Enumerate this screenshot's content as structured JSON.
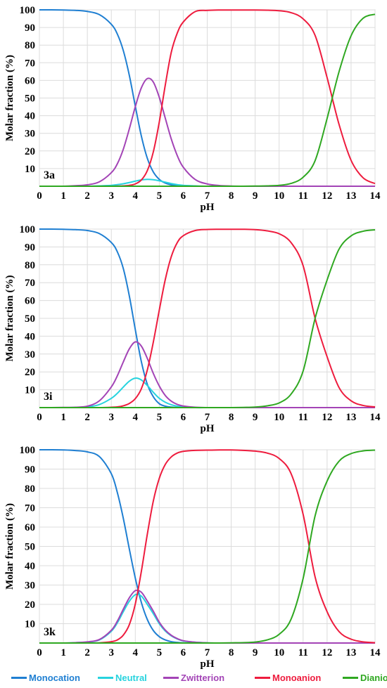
{
  "chart_data": [
    {
      "type": "line",
      "panel_label": "3a",
      "xlabel": "pH",
      "ylabel": "Molar fraction (%)",
      "xlim": [
        0,
        14
      ],
      "ylim": [
        0,
        100
      ],
      "xticks": [
        "0",
        "1",
        "2",
        "3",
        "4",
        "5",
        "6",
        "7",
        "8",
        "9",
        "10",
        "11",
        "12",
        "13",
        "14"
      ],
      "yticks": [
        "10",
        "20",
        "30",
        "40",
        "50",
        "60",
        "70",
        "80",
        "90",
        "100"
      ],
      "grid": true,
      "pKa": [
        4.75,
        4.8,
        12.4
      ],
      "microfractions": {
        "Neutral": 0.06,
        "Zwitterion": 0.94
      },
      "x": [
        0,
        0.5,
        1,
        1.5,
        2,
        2.5,
        3,
        3.25,
        3.5,
        3.75,
        4,
        4.25,
        4.5,
        4.75,
        5,
        5.25,
        5.5,
        5.75,
        6,
        6.5,
        7,
        7.5,
        8,
        8.5,
        9,
        9.5,
        10,
        10.5,
        11,
        11.5,
        12,
        12.5,
        13,
        13.5,
        14
      ],
      "series": [
        {
          "name": "Monocation",
          "color": "#1f7fd2",
          "values": [
            100.0,
            100.0,
            99.9,
            99.7,
            99.1,
            97.3,
            91.8,
            86.3,
            76.9,
            62.9,
            45.4,
            28.6,
            15.9,
            8.1,
            3.9,
            1.8,
            0.8,
            0.4,
            0.2,
            0.0,
            0.0,
            0.0,
            0.0,
            0.0,
            0.0,
            0.0,
            0.0,
            0.0,
            0.0,
            0.0,
            0.0,
            0.0,
            0.0,
            0.0,
            0.0
          ]
        },
        {
          "name": "Neutral",
          "color": "#27d3de",
          "values": [
            0.0,
            0.0,
            0.0,
            0.0,
            0.0,
            0.2,
            0.5,
            0.9,
            1.4,
            2.1,
            2.9,
            3.6,
            3.9,
            3.7,
            3.1,
            2.3,
            1.5,
            0.9,
            0.5,
            0.2,
            0.0,
            0.0,
            0.0,
            0.0,
            0.0,
            0.0,
            0.0,
            0.0,
            0.0,
            0.0,
            0.0,
            0.0,
            0.0,
            0.0,
            0.0
          ]
        },
        {
          "name": "Zwitterion",
          "color": "#a344b6",
          "values": [
            0.0,
            0.0,
            0.0,
            0.3,
            0.8,
            2.5,
            7.7,
            12.7,
            21.0,
            32.5,
            45.1,
            55.7,
            61.0,
            59.1,
            50.4,
            38.6,
            26.8,
            17.4,
            10.8,
            3.8,
            1.3,
            0.4,
            0.1,
            0.0,
            0.0,
            0.0,
            0.0,
            0.0,
            0.0,
            0.0,
            0.0,
            0.0,
            0.0,
            0.0,
            0.0
          ]
        },
        {
          "name": "Monoanion",
          "color": "#ee1c3e",
          "values": [
            0.0,
            0.0,
            0.0,
            0.0,
            0.0,
            0.0,
            0.0,
            0.1,
            0.2,
            0.5,
            1.3,
            3.5,
            8.8,
            19.4,
            36.4,
            57.3,
            75.9,
            86.8,
            93.1,
            99.0,
            99.7,
            99.9,
            99.9,
            99.9,
            99.9,
            99.8,
            99.5,
            98.4,
            94.9,
            85.5,
            61.6,
            35.0,
            14.7,
            4.8,
            1.5
          ]
        },
        {
          "name": "Dianion",
          "color": "#2fa821",
          "values": [
            0.0,
            0.0,
            0.0,
            0.0,
            0.0,
            0.0,
            0.0,
            0.0,
            0.0,
            0.0,
            0.0,
            0.0,
            0.0,
            0.0,
            0.0,
            0.0,
            0.0,
            0.0,
            0.0,
            0.0,
            0.0,
            0.0,
            0.0,
            0.0,
            0.1,
            0.2,
            0.5,
            1.6,
            5.1,
            14.5,
            38.4,
            65.0,
            85.3,
            95.2,
            97.5
          ]
        }
      ]
    },
    {
      "type": "line",
      "panel_label": "3i",
      "xlabel": "pH",
      "ylabel": "Molar fraction (%)",
      "xlim": [
        0,
        14
      ],
      "ylim": [
        0,
        100
      ],
      "xticks": [
        "0",
        "1",
        "2",
        "3",
        "4",
        "5",
        "6",
        "7",
        "8",
        "9",
        "10",
        "11",
        "12",
        "13",
        "14"
      ],
      "yticks": [
        "10",
        "20",
        "30",
        "40",
        "50",
        "60",
        "70",
        "80",
        "90",
        "100"
      ],
      "grid": true,
      "pKa": [
        3.85,
        4.65,
        11.6
      ],
      "microfractions": {
        "Neutral": 0.31,
        "Zwitterion": 0.69
      },
      "x": [
        0,
        0.5,
        1,
        1.5,
        2,
        2.5,
        3,
        3.25,
        3.5,
        3.75,
        4,
        4.25,
        4.5,
        4.75,
        5,
        5.25,
        5.5,
        5.75,
        6,
        6.5,
        7,
        7.5,
        8,
        8.5,
        9,
        9.5,
        10,
        10.5,
        11,
        11.5,
        12,
        12.5,
        13,
        13.5,
        14
      ],
      "series": [
        {
          "name": "Monocation",
          "color": "#1f7fd2",
          "values": [
            100.0,
            100.0,
            99.9,
            99.7,
            99.2,
            97.5,
            92.5,
            87.3,
            77.9,
            62.6,
            43.7,
            25.9,
            13.1,
            6.1,
            2.2,
            0.8,
            0.3,
            0.1,
            0.0,
            0.0,
            0.0,
            0.0,
            0.0,
            0.0,
            0.0,
            0.0,
            0.0,
            0.0,
            0.0,
            0.0,
            0.0,
            0.0,
            0.0,
            0.0,
            0.0
          ]
        },
        {
          "name": "Neutral",
          "color": "#27d3de",
          "values": [
            0.0,
            0.0,
            0.0,
            0.1,
            0.4,
            1.7,
            5.2,
            8.0,
            11.5,
            14.8,
            16.5,
            15.5,
            12.4,
            8.6,
            5.2,
            3.0,
            1.6,
            0.8,
            0.4,
            0.0,
            0.0,
            0.0,
            0.0,
            0.0,
            0.0,
            0.0,
            0.0,
            0.0,
            0.0,
            0.0,
            0.0,
            0.0,
            0.0,
            0.0,
            0.0
          ]
        },
        {
          "name": "Zwitterion",
          "color": "#a344b6",
          "values": [
            0.0,
            0.0,
            0.1,
            0.2,
            0.8,
            3.8,
            11.6,
            17.8,
            25.6,
            32.9,
            36.8,
            34.5,
            27.6,
            19.2,
            12.1,
            6.8,
            3.6,
            1.8,
            0.9,
            0.2,
            0.0,
            0.0,
            0.0,
            0.0,
            0.0,
            0.0,
            0.0,
            0.0,
            0.0,
            0.0,
            0.0,
            0.0,
            0.0,
            0.0,
            0.0
          ]
        },
        {
          "name": "Monoanion",
          "color": "#ee1c3e",
          "values": [
            0.0,
            0.0,
            0.0,
            0.0,
            0.0,
            0.0,
            0.2,
            0.4,
            1.0,
            2.3,
            5.0,
            10.5,
            21.0,
            36.6,
            54.6,
            71.7,
            84.5,
            92.4,
            96.3,
            99.2,
            99.8,
            99.9,
            99.9,
            99.9,
            99.7,
            99.0,
            97.4,
            92.4,
            79.5,
            50.0,
            28.5,
            11.2,
            3.8,
            1.2,
            0.4
          ]
        },
        {
          "name": "Dianion",
          "color": "#2fa821",
          "values": [
            0.0,
            0.0,
            0.0,
            0.0,
            0.0,
            0.0,
            0.0,
            0.0,
            0.0,
            0.0,
            0.0,
            0.0,
            0.0,
            0.0,
            0.0,
            0.0,
            0.0,
            0.0,
            0.0,
            0.0,
            0.0,
            0.0,
            0.0,
            0.1,
            0.3,
            1.0,
            2.6,
            7.6,
            20.5,
            50.0,
            71.5,
            88.8,
            96.2,
            98.8,
            99.6
          ]
        }
      ]
    },
    {
      "type": "line",
      "panel_label": "3k",
      "xlabel": "pH",
      "ylabel": "Molar fraction (%)",
      "xlim": [
        0,
        14
      ],
      "ylim": [
        0,
        100
      ],
      "xticks": [
        "0",
        "1",
        "2",
        "3",
        "4",
        "5",
        "6",
        "7",
        "8",
        "9",
        "10",
        "11",
        "12",
        "13",
        "14"
      ],
      "yticks": [
        "10",
        "20",
        "30",
        "40",
        "50",
        "60",
        "70",
        "80",
        "90",
        "100"
      ],
      "grid": true,
      "pKa": [
        3.7,
        4.3,
        11.3
      ],
      "microfractions": {
        "Neutral": 0.48,
        "Zwitterion": 0.52
      },
      "x": [
        0,
        0.5,
        1,
        1.5,
        2,
        2.5,
        3,
        3.25,
        3.5,
        3.75,
        4,
        4.25,
        4.5,
        4.75,
        5,
        5.25,
        5.5,
        5.75,
        6,
        6.5,
        7,
        7.5,
        8,
        8.5,
        9,
        9.5,
        10,
        10.5,
        11,
        11.5,
        12,
        12.5,
        13,
        13.5,
        14
      ],
      "series": [
        {
          "name": "Monocation",
          "color": "#1f7fd2",
          "values": [
            100.0,
            100.0,
            99.9,
            99.6,
            98.9,
            96.5,
            87.6,
            77.9,
            64.5,
            48.7,
            33.6,
            21.1,
            12.2,
            6.5,
            3.3,
            1.6,
            0.7,
            0.3,
            0.1,
            0.0,
            0.0,
            0.0,
            0.0,
            0.0,
            0.0,
            0.0,
            0.0,
            0.0,
            0.0,
            0.0,
            0.0,
            0.0,
            0.0,
            0.0,
            0.0
          ]
        },
        {
          "name": "Neutral",
          "color": "#27d3de",
          "values": [
            0.0,
            0.0,
            0.0,
            0.2,
            0.5,
            1.6,
            6.1,
            10.4,
            16.2,
            21.6,
            25.0,
            24.3,
            20.0,
            15.2,
            10.0,
            6.2,
            3.7,
            2.1,
            1.1,
            0.4,
            0.1,
            0.0,
            0.0,
            0.0,
            0.0,
            0.0,
            0.0,
            0.0,
            0.0,
            0.0,
            0.0,
            0.0,
            0.0,
            0.0,
            0.0
          ]
        },
        {
          "name": "Zwitterion",
          "color": "#a344b6",
          "values": [
            0.0,
            0.0,
            0.0,
            0.2,
            0.6,
            1.8,
            6.6,
            11.3,
            17.5,
            23.4,
            27.1,
            26.3,
            21.7,
            16.5,
            10.8,
            6.7,
            4.0,
            2.3,
            1.2,
            0.4,
            0.1,
            0.0,
            0.0,
            0.0,
            0.0,
            0.0,
            0.0,
            0.0,
            0.0,
            0.0,
            0.0,
            0.0,
            0.0,
            0.0,
            0.0
          ]
        },
        {
          "name": "Monoanion",
          "color": "#ee1c3e",
          "values": [
            0.0,
            0.0,
            0.0,
            0.0,
            0.0,
            0.1,
            0.7,
            1.6,
            4.1,
            9.5,
            20.2,
            36.9,
            56.2,
            73.4,
            85.2,
            92.4,
            96.3,
            98.3,
            99.2,
            99.7,
            99.8,
            99.9,
            99.9,
            99.7,
            99.3,
            98.3,
            95.5,
            87.6,
            66.6,
            34.2,
            16.2,
            5.9,
            2.0,
            0.6,
            0.2
          ]
        },
        {
          "name": "Dianion",
          "color": "#2fa821",
          "values": [
            0.0,
            0.0,
            0.0,
            0.0,
            0.0,
            0.0,
            0.0,
            0.0,
            0.0,
            0.0,
            0.0,
            0.0,
            0.0,
            0.0,
            0.0,
            0.0,
            0.0,
            0.0,
            0.0,
            0.0,
            0.0,
            0.0,
            0.1,
            0.2,
            0.5,
            1.6,
            4.5,
            12.4,
            33.4,
            65.8,
            83.8,
            94.1,
            98.0,
            99.4,
            99.8
          ]
        }
      ]
    }
  ],
  "legend": [
    {
      "name": "Monocation",
      "color": "#1f7fd2"
    },
    {
      "name": "Neutral",
      "color": "#27d3de"
    },
    {
      "name": "Zwitterion",
      "color": "#a344b6"
    },
    {
      "name": "Monoanion",
      "color": "#ee1c3e"
    },
    {
      "name": "Dianion",
      "color": "#2fa821"
    }
  ]
}
